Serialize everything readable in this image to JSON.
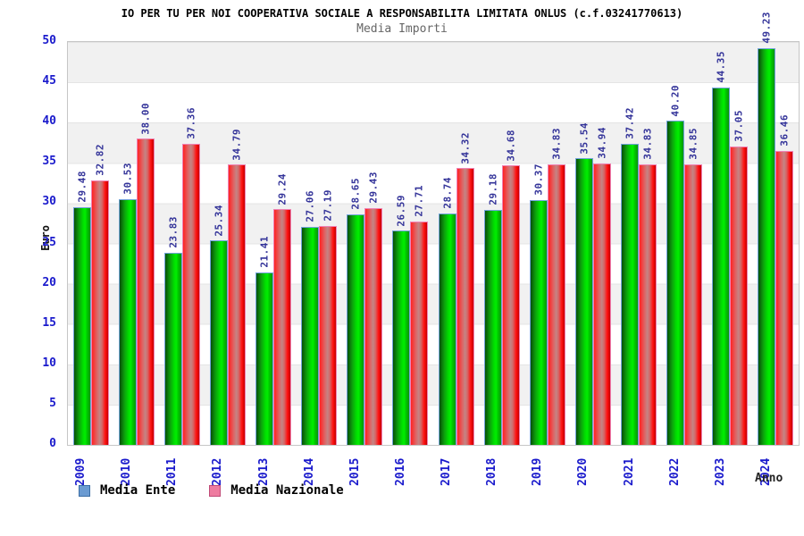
{
  "page": {
    "background": "#ffffff"
  },
  "chart_data": {
    "type": "bar",
    "title": "IO PER TU PER NOI COOPERATIVA SOCIALE A RESPONSABILITA LIMITATA ONLUS (c.f.03241770613)",
    "subtitle": "Media Importi",
    "xlabel": "Anno",
    "ylabel": "Euro",
    "ylim": [
      0,
      50
    ],
    "yticks": [
      0,
      5,
      10,
      15,
      20,
      25,
      30,
      35,
      40,
      45,
      50
    ],
    "grid": "horizontal-bands",
    "band_colors": [
      "#f1f1f1",
      "#ffffff"
    ],
    "legend_position": "bottom-left",
    "categories": [
      "2009",
      "2010",
      "2011",
      "2012",
      "2013",
      "2014",
      "2015",
      "2016",
      "2017",
      "2018",
      "2019",
      "2020",
      "2021",
      "2022",
      "2023",
      "2024"
    ],
    "series": [
      {
        "name": "Media Ente",
        "values": [
          29.48,
          30.53,
          23.83,
          25.34,
          21.41,
          27.06,
          28.65,
          26.59,
          28.74,
          29.18,
          30.37,
          35.54,
          37.42,
          40.2,
          44.35,
          49.23
        ],
        "bar_color": "#00dd00",
        "bar_border_color": "#72a3dc",
        "legend_swatch_color": "#6b9bd2"
      },
      {
        "name": "Media Nazionale",
        "values": [
          32.82,
          38.0,
          37.36,
          34.79,
          29.24,
          27.19,
          29.43,
          27.71,
          34.32,
          34.68,
          34.83,
          34.94,
          34.83,
          34.85,
          37.05,
          36.46
        ],
        "bar_color": "#ff1a1a",
        "bar_border_color": "#ef83b5",
        "legend_swatch_color": "#ee7ca0"
      }
    ],
    "value_label_color": "#333399",
    "axis_tick_color": "#1a1acc",
    "title_color": "#000000",
    "subtitle_color": "#666666"
  }
}
